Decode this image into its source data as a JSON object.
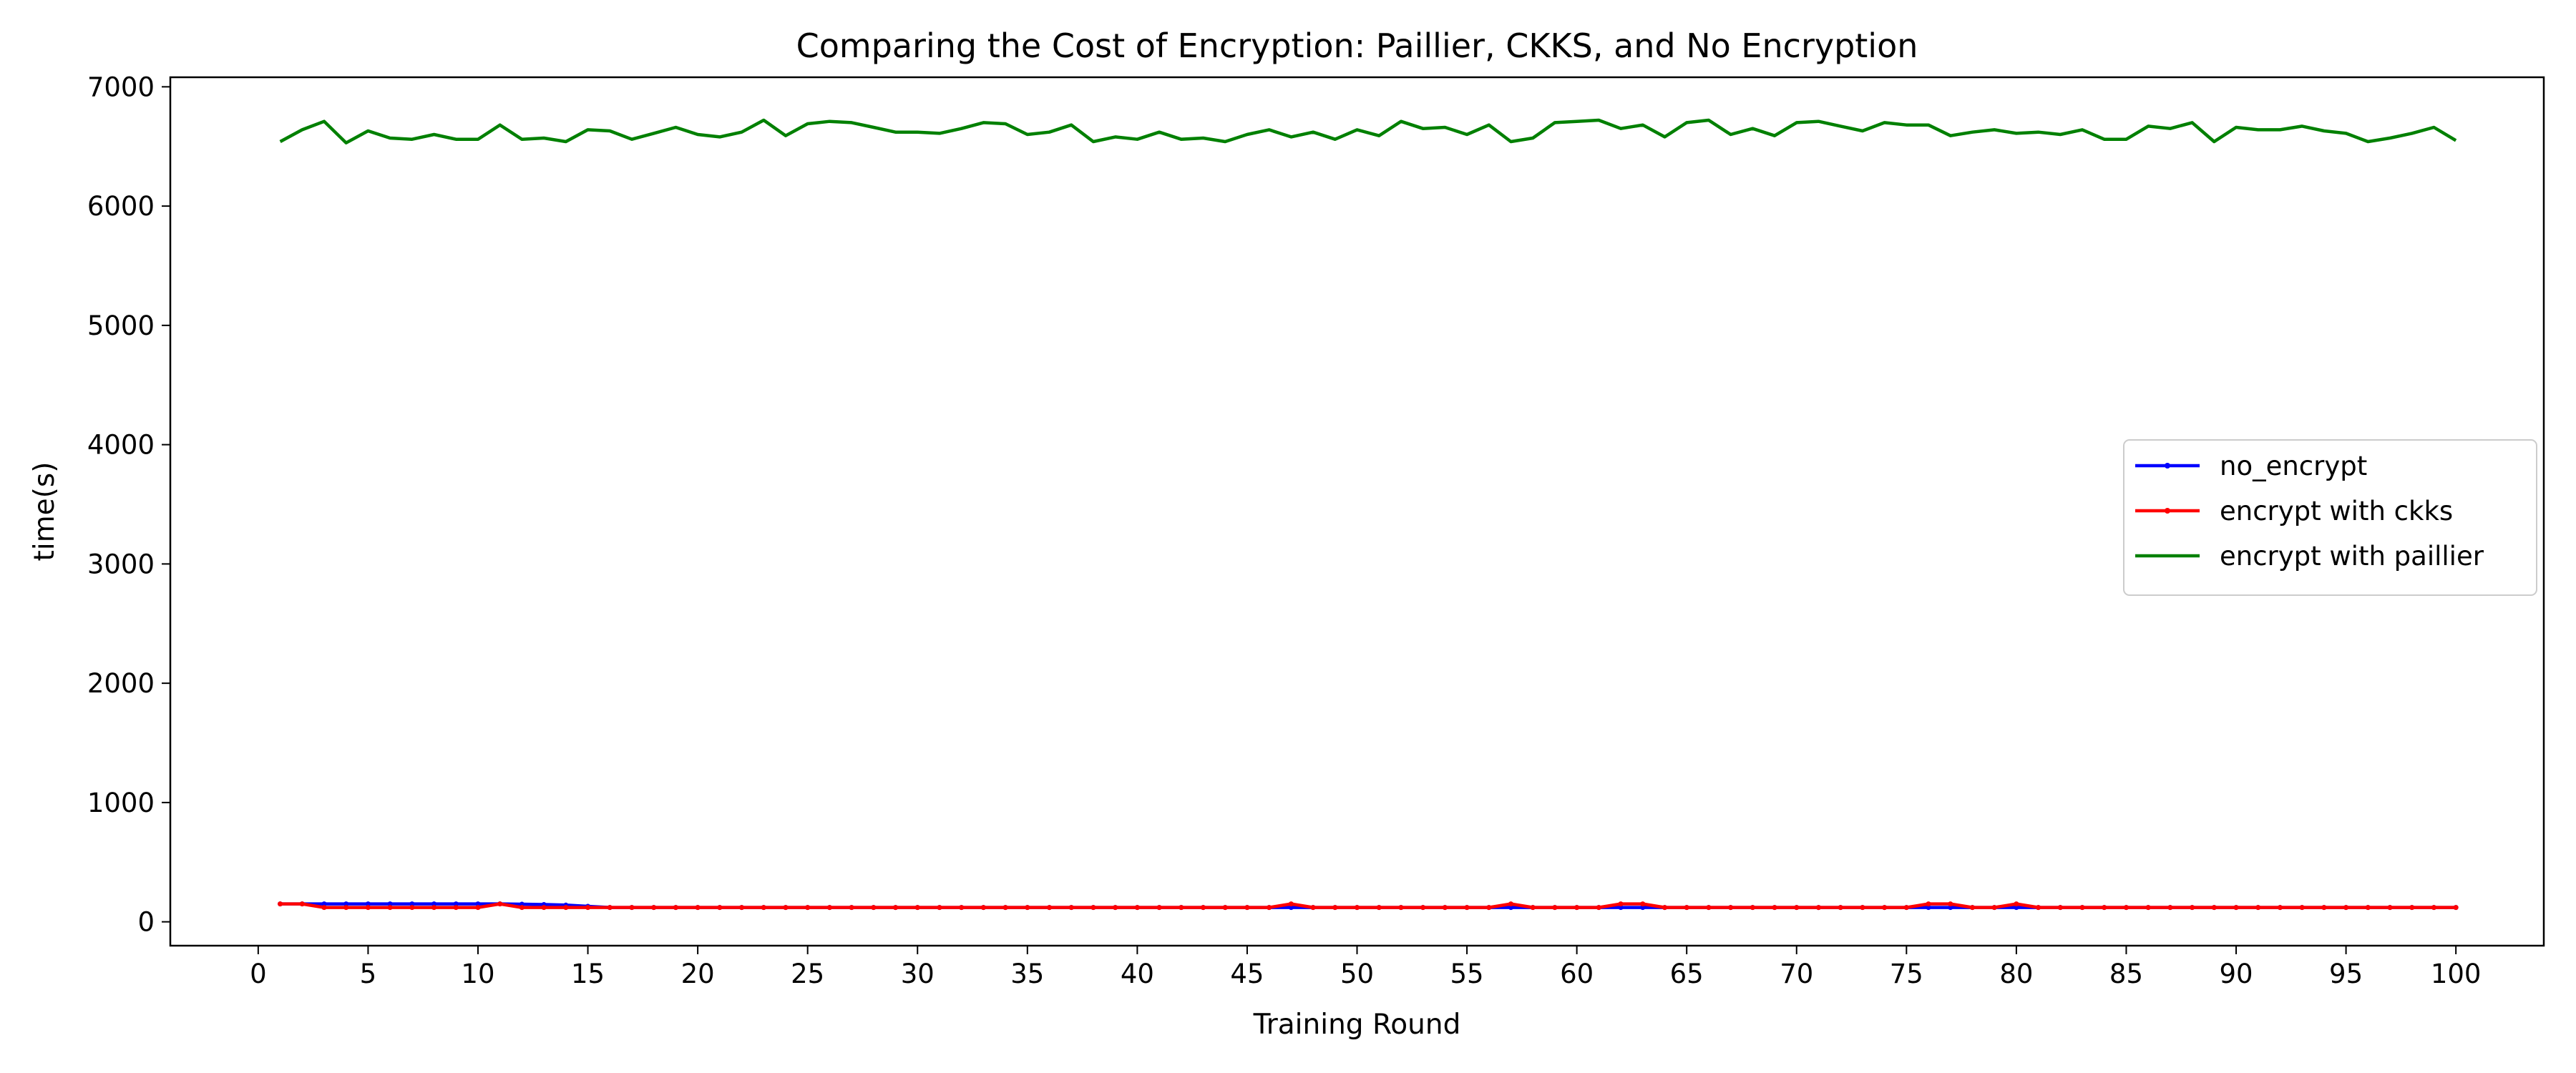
{
  "chart_data": {
    "type": "line",
    "title": "Comparing the Cost of Encryption: Paillier, CKKS, and No Encryption",
    "xlabel": "Training Round",
    "ylabel": "time(s)",
    "xlim": [
      -4,
      104
    ],
    "ylim": [
      -200,
      7080
    ],
    "xticks": [
      0,
      5,
      10,
      15,
      20,
      25,
      30,
      35,
      40,
      45,
      50,
      55,
      60,
      65,
      70,
      75,
      80,
      85,
      90,
      95,
      100
    ],
    "yticks": [
      0,
      1000,
      2000,
      3000,
      4000,
      5000,
      6000,
      7000
    ],
    "grid": false,
    "legend_position": "center-right",
    "series": [
      {
        "name": "no_encrypt",
        "color": "#0000ff",
        "marker": true,
        "x_start": 1,
        "values": [
          150,
          150,
          150,
          150,
          150,
          150,
          150,
          150,
          150,
          150,
          150,
          148,
          145,
          140,
          130,
          120,
          120,
          120,
          120,
          120,
          120,
          120,
          120,
          120,
          120,
          120,
          120,
          120,
          120,
          120,
          120,
          120,
          120,
          120,
          120,
          120,
          120,
          120,
          120,
          120,
          120,
          120,
          120,
          120,
          120,
          120,
          120,
          120,
          120,
          120,
          120,
          120,
          120,
          120,
          120,
          120,
          120,
          120,
          120,
          120,
          120,
          120,
          120,
          120,
          120,
          120,
          120,
          120,
          120,
          120,
          120,
          120,
          120,
          120,
          120,
          120,
          120,
          120,
          120,
          120,
          120,
          120,
          120,
          120,
          120,
          120,
          120,
          120,
          120,
          120,
          120,
          120,
          120,
          120,
          120,
          120,
          120,
          120,
          120,
          120
        ]
      },
      {
        "name": "encrypt with ckks",
        "color": "#ff0000",
        "marker": true,
        "x_start": 1,
        "values": [
          150,
          150,
          120,
          120,
          120,
          120,
          120,
          120,
          120,
          120,
          150,
          120,
          120,
          120,
          120,
          120,
          120,
          120,
          120,
          120,
          120,
          120,
          120,
          120,
          120,
          120,
          120,
          120,
          120,
          120,
          120,
          120,
          120,
          120,
          120,
          120,
          120,
          120,
          120,
          120,
          120,
          120,
          120,
          120,
          120,
          120,
          150,
          120,
          120,
          120,
          120,
          120,
          120,
          120,
          120,
          120,
          150,
          120,
          120,
          120,
          120,
          150,
          150,
          120,
          120,
          120,
          120,
          120,
          120,
          120,
          120,
          120,
          120,
          120,
          120,
          150,
          150,
          120,
          120,
          150,
          120,
          120,
          120,
          120,
          120,
          120,
          120,
          120,
          120,
          120,
          120,
          120,
          120,
          120,
          120,
          120,
          120,
          120,
          120,
          120
        ]
      },
      {
        "name": "encrypt with paillier",
        "color": "#008000",
        "marker": false,
        "x_start": 1,
        "values": [
          6540,
          6640,
          6710,
          6530,
          6630,
          6570,
          6560,
          6600,
          6560,
          6560,
          6680,
          6560,
          6570,
          6540,
          6640,
          6630,
          6560,
          6610,
          6660,
          6600,
          6580,
          6620,
          6720,
          6590,
          6690,
          6710,
          6700,
          6660,
          6620,
          6620,
          6610,
          6650,
          6700,
          6690,
          6600,
          6620,
          6680,
          6540,
          6580,
          6560,
          6620,
          6560,
          6570,
          6540,
          6600,
          6640,
          6580,
          6620,
          6560,
          6640,
          6590,
          6710,
          6650,
          6660,
          6600,
          6680,
          6540,
          6570,
          6700,
          6710,
          6720,
          6650,
          6680,
          6580,
          6700,
          6720,
          6600,
          6650,
          6590,
          6700,
          6710,
          6670,
          6630,
          6700,
          6680,
          6680,
          6590,
          6620,
          6640,
          6610,
          6620,
          6600,
          6640,
          6560,
          6560,
          6670,
          6650,
          6700,
          6540,
          6660,
          6640,
          6640,
          6670,
          6630,
          6610,
          6540,
          6570,
          6610,
          6660,
          6550
        ]
      }
    ]
  }
}
